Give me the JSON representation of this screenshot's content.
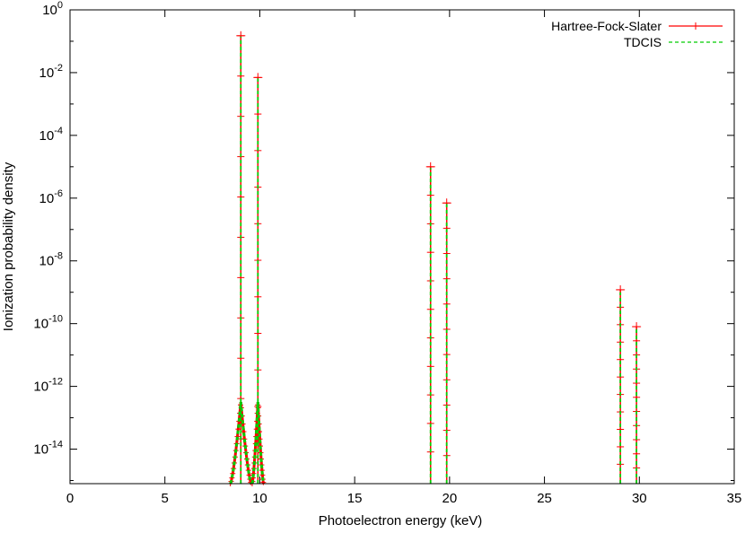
{
  "chart_data": {
    "type": "line",
    "title": "",
    "xlabel": "Photoelectron energy (keV)",
    "ylabel": "Ionization probability density",
    "xlim": [
      0,
      35
    ],
    "ylim_log10": [
      -15.1,
      0
    ],
    "yscale": "log",
    "grid": false,
    "legend_position": "top-right",
    "x_ticks": [
      0,
      5,
      10,
      15,
      20,
      25,
      30,
      35
    ],
    "y_tick_exponents": [
      0,
      -2,
      -4,
      -6,
      -8,
      -10,
      -12,
      -14
    ],
    "floor_log10": -15.1,
    "series": [
      {
        "name": "Hartree-Fock-Slater",
        "color": "#ff0000",
        "style": "solid-with-plus-markers",
        "peaks": [
          {
            "center": 9.0,
            "height": 0.15,
            "half_width": 0.55
          },
          {
            "center": 9.9,
            "height": 0.007,
            "half_width": 0.3
          },
          {
            "center": 19.0,
            "height": 1e-05,
            "half_width": 0.08
          },
          {
            "center": 19.85,
            "height": 7e-07,
            "half_width": 0.08
          },
          {
            "center": 29.0,
            "height": 1.2e-09,
            "half_width": 0.08
          },
          {
            "center": 29.85,
            "height": 8e-11,
            "half_width": 0.08
          }
        ]
      },
      {
        "name": "TDCIS",
        "color": "#00cc00",
        "style": "dashed",
        "peaks": [
          {
            "center": 9.0,
            "height": 0.14,
            "half_width": 0.55
          },
          {
            "center": 9.9,
            "height": 0.0065,
            "half_width": 0.3
          },
          {
            "center": 19.0,
            "height": 9e-06,
            "half_width": 0.08
          },
          {
            "center": 19.85,
            "height": 6.5e-07,
            "half_width": 0.08
          },
          {
            "center": 29.0,
            "height": 1e-09,
            "half_width": 0.08
          },
          {
            "center": 29.85,
            "height": 7e-11,
            "half_width": 0.08
          }
        ]
      }
    ]
  }
}
